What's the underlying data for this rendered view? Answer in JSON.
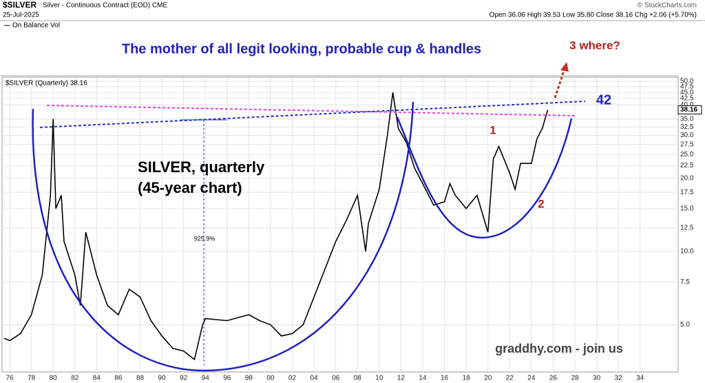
{
  "header": {
    "symbol": "$SILVER",
    "description": "Silver - Continuous Contract (EOD) CME",
    "date": "25-Jul-2025",
    "ohlc": "Open 36.06  High 39.53  Low 35.80  Close 38.16  Chg +2.06 (+5.70%)",
    "credit": "© StockCharts.com",
    "indicator": "On Balance Vol"
  },
  "chart_data": {
    "type": "line",
    "log_scale": true,
    "grid": true,
    "color": "#000000",
    "title": "The mother of all legit looking, probable cup & handles",
    "legend": "$SILVER (Quarterly) 38.16",
    "last_label": "38.16",
    "annotations": {
      "where": "3 where?",
      "target": "42",
      "one": "1",
      "two": "2",
      "subtitle1": "SILVER, quarterly",
      "subtitle2": "(45-year chart)",
      "gain": "925.9%",
      "site": "graddhy.com - join us"
    },
    "x": [
      1975.5,
      1976,
      1977,
      1978,
      1979,
      1979.75,
      1980,
      1980.25,
      1980.75,
      1981,
      1982,
      1982.5,
      1983,
      1984,
      1985,
      1986,
      1987,
      1988,
      1989,
      1990,
      1991,
      1992,
      1993,
      1993.75,
      1994,
      1996,
      1998,
      1999,
      2000,
      2001,
      2002,
      2003,
      2004,
      2006,
      2007,
      2008,
      2008.75,
      2009,
      2010,
      2010.75,
      2011.25,
      2011.75,
      2012.5,
      2013.25,
      2014,
      2015,
      2016,
      2016.5,
      2017,
      2018,
      2019,
      2020,
      2020.5,
      2021,
      2022,
      2022.5,
      2023,
      2024,
      2024.5,
      2025,
      2025.5
    ],
    "values": [
      4.4,
      4.3,
      4.6,
      5.5,
      8.0,
      17,
      35,
      15,
      17,
      11,
      8,
      6,
      12,
      8,
      6,
      5.5,
      7,
      6.5,
      5.2,
      4.5,
      4.0,
      3.9,
      3.6,
      5.0,
      5.3,
      5.2,
      5.5,
      5.2,
      5.0,
      4.5,
      4.6,
      5.0,
      6.5,
      11,
      13.5,
      17,
      10,
      13,
      18,
      30,
      45,
      32,
      28,
      22,
      19,
      15.5,
      16,
      19,
      17,
      15,
      17,
      12,
      24,
      27,
      21,
      18,
      23,
      23,
      29,
      32,
      38.16
    ],
    "xlim": [
      1975.3,
      2037.5
    ],
    "xticks": [
      {
        "value": 1976,
        "label": "76"
      },
      {
        "value": 1978,
        "label": "78"
      },
      {
        "value": 1980,
        "label": "80"
      },
      {
        "value": 1982,
        "label": "82"
      },
      {
        "value": 1984,
        "label": "84"
      },
      {
        "value": 1986,
        "label": "86"
      },
      {
        "value": 1988,
        "label": "88"
      },
      {
        "value": 1990,
        "label": "90"
      },
      {
        "value": 1992,
        "label": "92"
      },
      {
        "value": 1994,
        "label": "94"
      },
      {
        "value": 1996,
        "label": "96"
      },
      {
        "value": 1998,
        "label": "98"
      },
      {
        "value": 2000,
        "label": "00"
      },
      {
        "value": 2002,
        "label": "02"
      },
      {
        "value": 2004,
        "label": "04"
      },
      {
        "value": 2006,
        "label": "06"
      },
      {
        "value": 2008,
        "label": "08"
      },
      {
        "value": 2010,
        "label": "10"
      },
      {
        "value": 2012,
        "label": "12"
      },
      {
        "value": 2014,
        "label": "14"
      },
      {
        "value": 2016,
        "label": "16"
      },
      {
        "value": 2018,
        "label": "18"
      },
      {
        "value": 2020,
        "label": "20"
      },
      {
        "value": 2022,
        "label": "22"
      },
      {
        "value": 2024,
        "label": "24"
      },
      {
        "value": 2026,
        "label": "26"
      },
      {
        "value": 2028,
        "label": "28"
      },
      {
        "value": 2030,
        "label": "30"
      },
      {
        "value": 2032,
        "label": "32"
      },
      {
        "value": 2034,
        "label": "34"
      }
    ],
    "ylim": [
      3.2,
      52
    ],
    "yticks": [
      {
        "value": 5,
        "label": "5.0"
      },
      7.5,
      {
        "value": 10,
        "label": "10.0"
      },
      12.5,
      {
        "value": 15,
        "label": "15.0"
      },
      17.5,
      {
        "value": 20,
        "label": "20.0"
      },
      22.5,
      {
        "value": 25,
        "label": "25.0"
      },
      27.5,
      {
        "value": 30,
        "label": "30.0"
      },
      32.5,
      {
        "value": 35,
        "label": "35.0"
      },
      {
        "value": 40,
        "label": "40.0"
      },
      42.5,
      {
        "value": 45,
        "label": "45.0"
      },
      47.5,
      {
        "value": 50,
        "label": "50.0"
      }
    ]
  }
}
